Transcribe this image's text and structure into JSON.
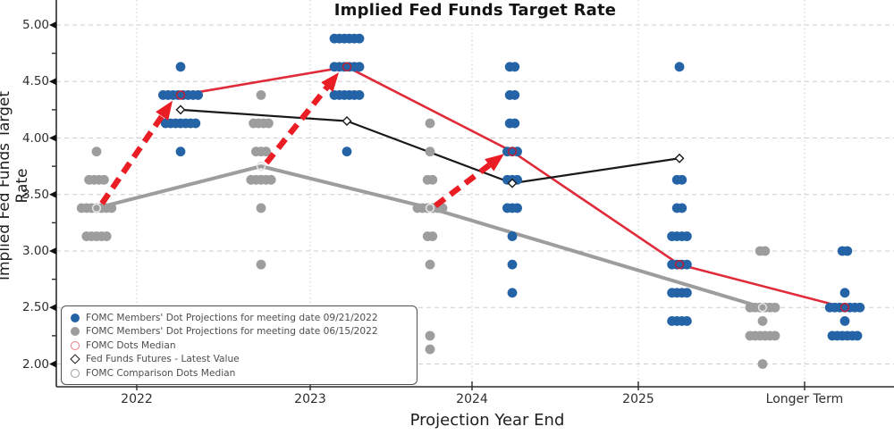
{
  "title": "Implied Fed Funds Target Rate",
  "axes": {
    "x_label": "Projection Year End",
    "y_label": "Implied Fed Funds Target Rate",
    "x_tick_labels": [
      "2022",
      "2023",
      "2024",
      "2025",
      "Longer Term"
    ],
    "y_tick_labels": [
      "5.00",
      "4.50",
      "4.00",
      "3.50",
      "3.00",
      "2.50",
      "2.00"
    ]
  },
  "legend": {
    "items": [
      {
        "marker": "blue-dot",
        "label": "FOMC Members' Dot Projections for meeting date 09/21/2022"
      },
      {
        "marker": "gray-dot",
        "label": "FOMC Members' Dot Projections for meeting date 06/15/2022"
      },
      {
        "marker": "red-open",
        "label": "FOMC Dots Median"
      },
      {
        "marker": "diamond",
        "label": "Fed Funds Futures - Latest Value"
      },
      {
        "marker": "gray-open",
        "label": "FOMC Comparison Dots Median"
      }
    ]
  },
  "colors": {
    "blue_dots": "#2563a7",
    "gray_dots": "#9d9d9d",
    "red_line": "#e02b3a",
    "red_arrow": "#ea1c24",
    "red_ring": "#b52238",
    "gray_line": "#9d9d9d",
    "gray_ring": "#e2e2e2",
    "black_line": "#1a1a1a",
    "grid": "#cdcdcd",
    "spine": "#2b2b2b"
  },
  "chart_data": {
    "type": "scatter",
    "title": "Implied Fed Funds Target Rate",
    "xlabel": "Projection Year End",
    "ylabel": "Implied Fed Funds Target Rate",
    "x_categories": [
      "2022",
      "2023",
      "2024",
      "2025",
      "Longer Term"
    ],
    "ylim": [
      1.8,
      5.1
    ],
    "y_major_gridlines": [
      5.0,
      4.5,
      4.0,
      3.5,
      3.0,
      2.5,
      2.0
    ],
    "y_minor_ticks": [
      4.75,
      4.25,
      3.75,
      3.25,
      2.75,
      2.25
    ],
    "dot_series": [
      {
        "name": "FOMC Members' Dot Projections for meeting date 09/21/2022",
        "meeting_date": "09/21/2022",
        "color_key": "blue_dots",
        "side": "september",
        "clusters": [
          {
            "x": "2022",
            "rate": 4.63,
            "count": 1
          },
          {
            "x": "2022",
            "rate": 4.38,
            "count": 8
          },
          {
            "x": "2022",
            "rate": 4.13,
            "count": 7
          },
          {
            "x": "2022",
            "rate": 3.88,
            "count": 1
          },
          {
            "x": "2023",
            "rate": 4.88,
            "count": 6
          },
          {
            "x": "2023",
            "rate": 4.63,
            "count": 6
          },
          {
            "x": "2023",
            "rate": 4.38,
            "count": 6
          },
          {
            "x": "2023",
            "rate": 3.88,
            "count": 1
          },
          {
            "x": "2024",
            "rate": 4.63,
            "count": 2
          },
          {
            "x": "2024",
            "rate": 4.38,
            "count": 2
          },
          {
            "x": "2024",
            "rate": 4.13,
            "count": 2
          },
          {
            "x": "2024",
            "rate": 3.88,
            "count": 3
          },
          {
            "x": "2024",
            "rate": 3.63,
            "count": 3
          },
          {
            "x": "2024",
            "rate": 3.38,
            "count": 3
          },
          {
            "x": "2024",
            "rate": 3.13,
            "count": 1
          },
          {
            "x": "2024",
            "rate": 2.88,
            "count": 1
          },
          {
            "x": "2024",
            "rate": 2.63,
            "count": 1
          },
          {
            "x": "2025",
            "rate": 4.63,
            "count": 1
          },
          {
            "x": "2025",
            "rate": 3.63,
            "count": 2
          },
          {
            "x": "2025",
            "rate": 3.38,
            "count": 2
          },
          {
            "x": "2025",
            "rate": 3.13,
            "count": 4
          },
          {
            "x": "2025",
            "rate": 2.88,
            "count": 4
          },
          {
            "x": "2025",
            "rate": 2.63,
            "count": 4
          },
          {
            "x": "2025",
            "rate": 2.38,
            "count": 4
          },
          {
            "x": "Longer Term",
            "rate": 3.0,
            "count": 2
          },
          {
            "x": "Longer Term",
            "rate": 2.63,
            "count": 1
          },
          {
            "x": "Longer Term",
            "rate": 2.5,
            "count": 7
          },
          {
            "x": "Longer Term",
            "rate": 2.38,
            "count": 1
          },
          {
            "x": "Longer Term",
            "rate": 2.25,
            "count": 6
          }
        ]
      },
      {
        "name": "FOMC Members' Dot Projections for meeting date 06/15/2022",
        "meeting_date": "06/15/2022",
        "color_key": "gray_dots",
        "side": "june",
        "clusters": [
          {
            "x": "2022",
            "rate": 3.88,
            "count": 1
          },
          {
            "x": "2022",
            "rate": 3.63,
            "count": 4
          },
          {
            "x": "2022",
            "rate": 3.38,
            "count": 7
          },
          {
            "x": "2022",
            "rate": 3.13,
            "count": 5
          },
          {
            "x": "2023",
            "rate": 4.38,
            "count": 1
          },
          {
            "x": "2023",
            "rate": 4.13,
            "count": 4
          },
          {
            "x": "2023",
            "rate": 3.88,
            "count": 3
          },
          {
            "x": "2023",
            "rate": 3.63,
            "count": 5
          },
          {
            "x": "2023",
            "rate": 3.38,
            "count": 1
          },
          {
            "x": "2023",
            "rate": 2.88,
            "count": 1
          },
          {
            "x": "2024",
            "rate": 4.13,
            "count": 1
          },
          {
            "x": "2024",
            "rate": 3.88,
            "count": 1
          },
          {
            "x": "2024",
            "rate": 3.63,
            "count": 2
          },
          {
            "x": "2024",
            "rate": 3.38,
            "count": 6
          },
          {
            "x": "2024",
            "rate": 3.13,
            "count": 2
          },
          {
            "x": "2024",
            "rate": 2.88,
            "count": 1
          },
          {
            "x": "2024",
            "rate": 2.25,
            "count": 1
          },
          {
            "x": "2024",
            "rate": 2.13,
            "count": 1
          },
          {
            "x": "Longer Term",
            "rate": 3.0,
            "count": 2
          },
          {
            "x": "Longer Term",
            "rate": 2.5,
            "count": 6
          },
          {
            "x": "Longer Term",
            "rate": 2.38,
            "count": 1
          },
          {
            "x": "Longer Term",
            "rate": 2.25,
            "count": 6
          },
          {
            "x": "Longer Term",
            "rate": 2.0,
            "count": 1
          }
        ]
      }
    ],
    "median_lines": [
      {
        "name": "FOMC Dots Median",
        "meeting_date": "09/21/2022",
        "color_key": "red_line",
        "ring_key": "red_ring",
        "side": "september",
        "points": [
          {
            "x": "2022",
            "rate": 4.38
          },
          {
            "x": "2023",
            "rate": 4.63
          },
          {
            "x": "2024",
            "rate": 3.88
          },
          {
            "x": "2025",
            "rate": 2.88
          },
          {
            "x": "Longer Term",
            "rate": 2.5
          }
        ]
      },
      {
        "name": "FOMC Comparison Dots Median",
        "meeting_date": "06/15/2022",
        "color_key": "gray_line",
        "ring_key": "gray_ring",
        "side": "june",
        "points": [
          {
            "x": "2022",
            "rate": 3.38
          },
          {
            "x": "2023",
            "rate": 3.75
          },
          {
            "x": "2024",
            "rate": 3.38
          },
          {
            "x": "Longer Term",
            "rate": 2.5
          }
        ]
      }
    ],
    "futures_line": {
      "name": "Fed Funds Futures - Latest Value",
      "color_key": "black_line",
      "side": "september",
      "points": [
        {
          "x": "2022",
          "rate": 4.25
        },
        {
          "x": "2023",
          "rate": 4.15
        },
        {
          "x": "2024",
          "rate": 3.6
        },
        {
          "x": "2025",
          "rate": 3.82
        }
      ]
    },
    "transition_arrows": [
      {
        "from": {
          "side": "june",
          "x": "2022",
          "rate": 3.42
        },
        "to": {
          "side": "september",
          "x": "2022",
          "rate": 4.33
        }
      },
      {
        "from": {
          "side": "june",
          "x": "2023",
          "rate": 3.78
        },
        "to": {
          "side": "september",
          "x": "2023",
          "rate": 4.58
        }
      },
      {
        "from": {
          "side": "june",
          "x": "2024",
          "rate": 3.4
        },
        "to": {
          "side": "september",
          "x": "2024",
          "rate": 3.86
        }
      }
    ]
  }
}
